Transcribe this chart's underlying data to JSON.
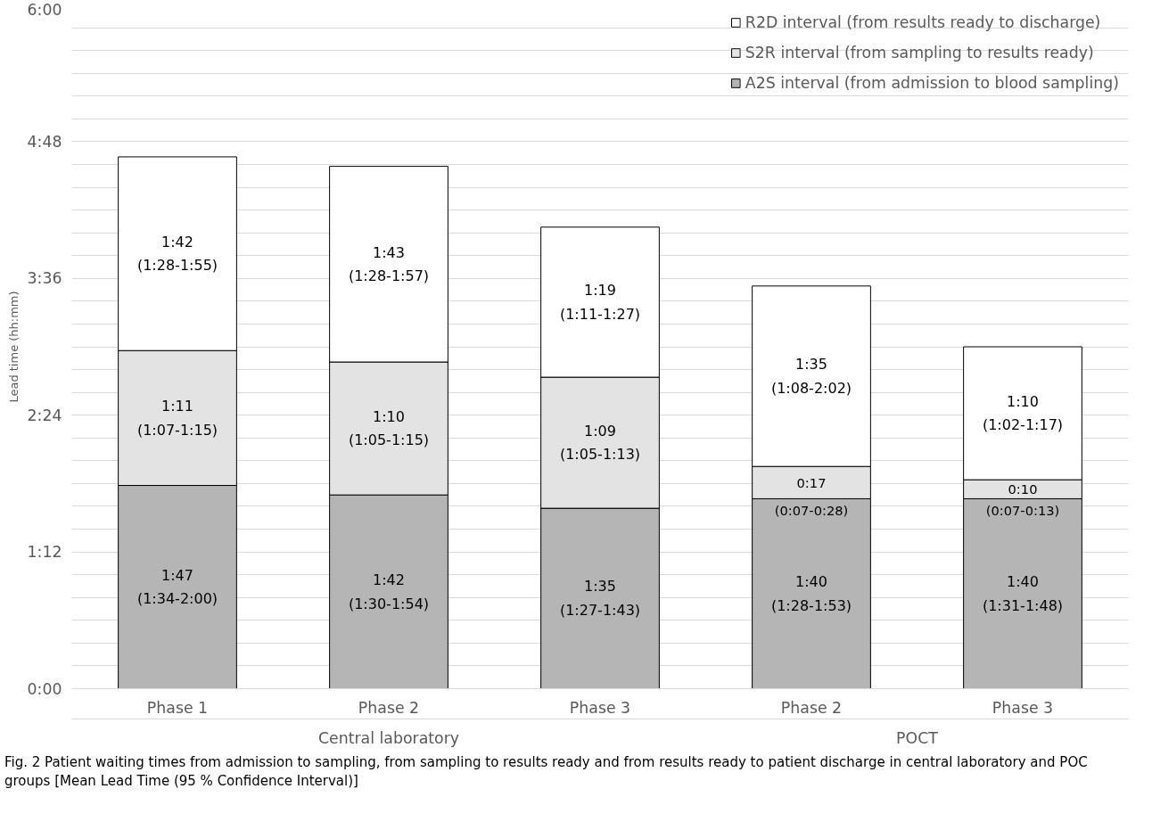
{
  "chart_data": {
    "type": "bar",
    "stacked": true,
    "ylabel": "Lead time (hh:mm)",
    "categories": [
      "Phase 1",
      "Phase 2",
      "Phase 3",
      "Phase 2",
      "Phase 3"
    ],
    "series": [
      {
        "name": "A2S interval (from admission to blood sampling)",
        "color": "#b5b5b5",
        "values": [
          107,
          102,
          95,
          100,
          100
        ],
        "value_labels": [
          "1:47\n(1:34-2:00)",
          "1:42\n(1:30-1:54)",
          "1:35\n(1:27-1:43)",
          "1:40\n(1:28-1:53)",
          "1:40\n(1:31-1:48)"
        ]
      },
      {
        "name": "S2R interval (from sampling to results ready)",
        "color": "#e3e3e3",
        "values": [
          71,
          70,
          69,
          17,
          10
        ],
        "value_labels": [
          "1:11\n(1:07-1:15)",
          "1:10\n(1:05-1:15)",
          "1:09\n(1:05-1:13)",
          "0:17\n(0:07-0:28)",
          "0:10\n(0:07-0:13)"
        ]
      },
      {
        "name": "R2D interval (from results ready to discharge)",
        "color": "#ffffff",
        "values": [
          102,
          103,
          79,
          95,
          70
        ],
        "value_labels": [
          "1:42\n(1:28-1:55)",
          "1:43\n(1:28-1:57)",
          "1:19\n(1:11-1:27)",
          "1:35\n(1:08-2:02)",
          "1:10\n(1:02-1:17)"
        ]
      }
    ],
    "ylim": [
      0,
      360
    ],
    "yticks": [
      {
        "value": 0,
        "label": "0:00"
      },
      {
        "value": 12,
        "label": null
      },
      {
        "value": 24,
        "label": null
      },
      {
        "value": 36,
        "label": null
      },
      {
        "value": 48,
        "label": null
      },
      {
        "value": 60,
        "label": null
      },
      {
        "value": 72,
        "label": "1:12"
      },
      {
        "value": 84,
        "label": null
      },
      {
        "value": 96,
        "label": null
      },
      {
        "value": 108,
        "label": null
      },
      {
        "value": 120,
        "label": null
      },
      {
        "value": 132,
        "label": null
      },
      {
        "value": 144,
        "label": "2:24"
      },
      {
        "value": 156,
        "label": null
      },
      {
        "value": 168,
        "label": null
      },
      {
        "value": 180,
        "label": null
      },
      {
        "value": 192,
        "label": null
      },
      {
        "value": 204,
        "label": null
      },
      {
        "value": 216,
        "label": "3:36"
      },
      {
        "value": 228,
        "label": null
      },
      {
        "value": 240,
        "label": null
      },
      {
        "value": 252,
        "label": null
      },
      {
        "value": 264,
        "label": null
      },
      {
        "value": 276,
        "label": null
      },
      {
        "value": 288,
        "label": "4:48"
      },
      {
        "value": 300,
        "label": null
      },
      {
        "value": 312,
        "label": null
      },
      {
        "value": 324,
        "label": null
      },
      {
        "value": 336,
        "label": null
      },
      {
        "value": 348,
        "label": null
      },
      {
        "value": 360,
        "label": "6:00"
      }
    ],
    "grid": "y",
    "legend": "top right",
    "annotations": [
      "Central laboratory",
      "POCT",
      "Fig. 2 Patient waiting times from admission to sampling, from sampling to results ready and from results ready to patient discharge in central laboratory and POC groups [Mean Lead Time (95 % Confidence Interval)]"
    ]
  }
}
